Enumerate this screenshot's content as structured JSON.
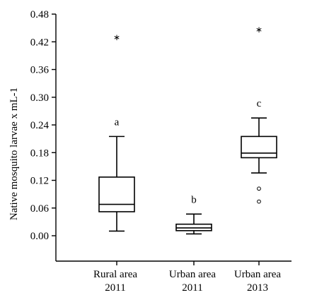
{
  "chart_data": {
    "type": "box",
    "ylabel": "Native mosquito larvae x mL-1",
    "ylim": [
      -0.055,
      0.48
    ],
    "yticks": [
      "0.00",
      "0.06",
      "0.12",
      "0.18",
      "0.24",
      "0.30",
      "0.36",
      "0.42",
      "0.48"
    ],
    "categories": [
      {
        "line1": "Rural area",
        "line2": "2011"
      },
      {
        "line1": "Urban area",
        "line2": "2011"
      },
      {
        "line1": "Urban area",
        "line2": "2013"
      }
    ],
    "boxes": [
      {
        "min": 0.01,
        "q1": 0.052,
        "median": 0.068,
        "q3": 0.127,
        "max": 0.215,
        "outliers": [],
        "extremes": [
          0.43
        ],
        "letter": "a"
      },
      {
        "min": 0.004,
        "q1": 0.011,
        "median": 0.017,
        "q3": 0.025,
        "max": 0.047,
        "outliers": [],
        "extremes": [],
        "letter": "b"
      },
      {
        "min": 0.136,
        "q1": 0.169,
        "median": 0.179,
        "q3": 0.215,
        "max": 0.255,
        "outliers": [
          0.102,
          0.074
        ],
        "extremes": [
          0.447
        ],
        "letter": "c"
      }
    ]
  }
}
